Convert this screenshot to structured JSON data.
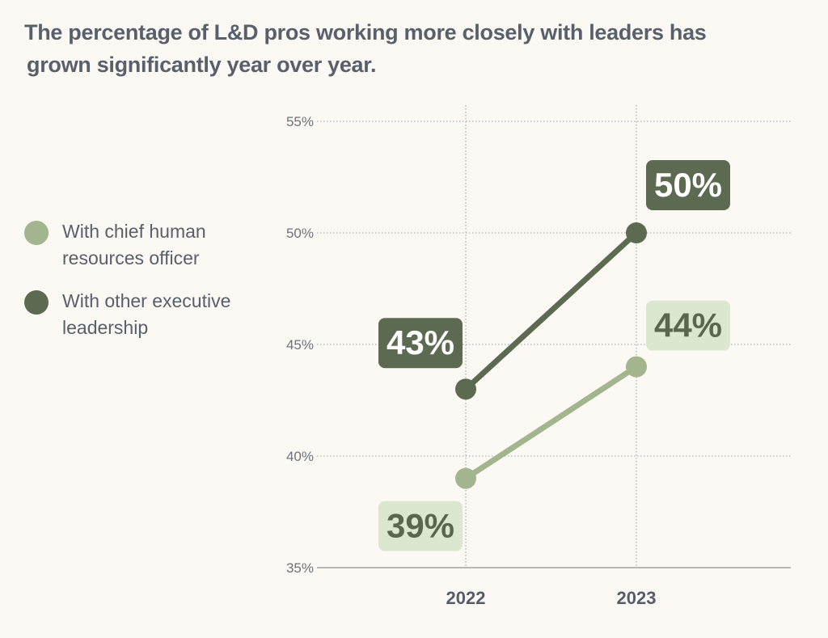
{
  "title_lines": [
    "The percentage of L&D pros working more closely with leaders has",
    "grown significantly year over year."
  ],
  "legend": [
    {
      "label": "With chief human resources officer",
      "color": "#a2b58f"
    },
    {
      "label": "With other executive leadership",
      "color": "#5d6a52"
    }
  ],
  "chart_data": {
    "type": "line",
    "title": "The percentage of L&D pros working more closely with leaders has grown significantly year over year.",
    "x": [
      "2022",
      "2023"
    ],
    "series": [
      {
        "name": "With chief human resources officer",
        "values": [
          39,
          44
        ],
        "labels": [
          "39%",
          "44%"
        ],
        "color": "#a2b58f",
        "label_bg": "#dbe8cf",
        "label_color": "#5a6650"
      },
      {
        "name": "With other executive leadership",
        "values": [
          43,
          50
        ],
        "labels": [
          "43%",
          "50%"
        ],
        "color": "#5d6a52",
        "label_bg": "#5d6a52",
        "label_color": "#ffffff"
      }
    ],
    "yticks": [
      35,
      40,
      45,
      50,
      55
    ],
    "ytick_labels": [
      "35%",
      "40%",
      "45%",
      "50%",
      "55%"
    ],
    "ylim": [
      35,
      55
    ],
    "xlabel": "",
    "ylabel": "",
    "grid": true,
    "legend_position": "left"
  }
}
